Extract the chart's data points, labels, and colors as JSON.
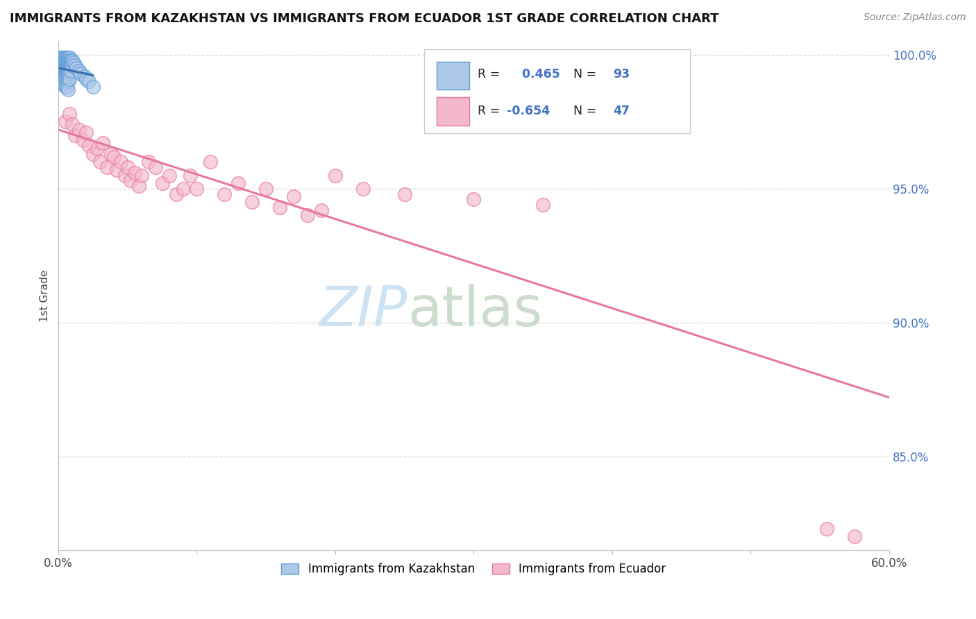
{
  "title": "IMMIGRANTS FROM KAZAKHSTAN VS IMMIGRANTS FROM ECUADOR 1ST GRADE CORRELATION CHART",
  "source": "Source: ZipAtlas.com",
  "ylabel": "1st Grade",
  "xlim": [
    0.0,
    0.6
  ],
  "ylim": [
    0.815,
    1.005
  ],
  "xticks": [
    0.0,
    0.1,
    0.2,
    0.3,
    0.4,
    0.5,
    0.6
  ],
  "xticklabels": [
    "0.0%",
    "",
    "",
    "",
    "",
    "",
    "60.0%"
  ],
  "yticks": [
    0.85,
    0.9,
    0.95,
    1.0
  ],
  "yticklabels": [
    "85.0%",
    "90.0%",
    "95.0%",
    "100.0%"
  ],
  "legend_label1": "Immigrants from Kazakhstan",
  "legend_label2": "Immigrants from Ecuador",
  "R1": 0.465,
  "N1": 93,
  "R2": -0.654,
  "N2": 47,
  "color_blue": "#aec8e8",
  "color_pink": "#f4b8cc",
  "color_blue_border": "#5b9bd5",
  "color_pink_border": "#e8789a",
  "color_blue_line": "#3a6fb0",
  "color_pink_line": "#e8789a",
  "background_color": "#ffffff",
  "grid_color": "#d8d8d8",
  "kazakhstan_x": [
    0.001,
    0.001,
    0.001,
    0.001,
    0.001,
    0.001,
    0.001,
    0.001,
    0.001,
    0.001,
    0.002,
    0.002,
    0.002,
    0.002,
    0.002,
    0.002,
    0.002,
    0.002,
    0.002,
    0.002,
    0.003,
    0.003,
    0.003,
    0.003,
    0.003,
    0.003,
    0.003,
    0.003,
    0.003,
    0.003,
    0.004,
    0.004,
    0.004,
    0.004,
    0.004,
    0.004,
    0.004,
    0.004,
    0.004,
    0.004,
    0.005,
    0.005,
    0.005,
    0.005,
    0.005,
    0.005,
    0.005,
    0.005,
    0.005,
    0.005,
    0.006,
    0.006,
    0.006,
    0.006,
    0.006,
    0.006,
    0.006,
    0.006,
    0.006,
    0.006,
    0.007,
    0.007,
    0.007,
    0.007,
    0.007,
    0.007,
    0.007,
    0.007,
    0.007,
    0.007,
    0.008,
    0.008,
    0.008,
    0.008,
    0.008,
    0.008,
    0.008,
    0.008,
    0.009,
    0.009,
    0.009,
    0.009,
    0.01,
    0.01,
    0.011,
    0.012,
    0.013,
    0.015,
    0.016,
    0.019,
    0.02,
    0.022,
    0.025
  ],
  "kazakhstan_y": [
    0.998,
    0.999,
    0.997,
    0.996,
    0.995,
    0.994,
    0.993,
    0.992,
    0.991,
    0.99,
    0.999,
    0.998,
    0.997,
    0.996,
    0.995,
    0.994,
    0.993,
    0.992,
    0.991,
    0.99,
    0.999,
    0.998,
    0.997,
    0.996,
    0.995,
    0.994,
    0.993,
    0.992,
    0.991,
    0.989,
    0.999,
    0.998,
    0.997,
    0.996,
    0.995,
    0.994,
    0.993,
    0.992,
    0.991,
    0.989,
    0.999,
    0.998,
    0.997,
    0.996,
    0.995,
    0.994,
    0.993,
    0.992,
    0.991,
    0.988,
    0.999,
    0.998,
    0.997,
    0.996,
    0.995,
    0.994,
    0.993,
    0.992,
    0.991,
    0.988,
    0.999,
    0.998,
    0.997,
    0.996,
    0.995,
    0.994,
    0.993,
    0.992,
    0.99,
    0.987,
    0.999,
    0.998,
    0.997,
    0.996,
    0.995,
    0.994,
    0.993,
    0.991,
    0.998,
    0.997,
    0.996,
    0.994,
    0.998,
    0.996,
    0.997,
    0.996,
    0.995,
    0.994,
    0.993,
    0.992,
    0.991,
    0.99,
    0.988
  ],
  "ecuador_x": [
    0.005,
    0.008,
    0.01,
    0.012,
    0.015,
    0.018,
    0.02,
    0.022,
    0.025,
    0.028,
    0.03,
    0.032,
    0.035,
    0.038,
    0.04,
    0.042,
    0.045,
    0.048,
    0.05,
    0.052,
    0.055,
    0.058,
    0.06,
    0.065,
    0.07,
    0.075,
    0.08,
    0.085,
    0.09,
    0.095,
    0.1,
    0.11,
    0.12,
    0.13,
    0.14,
    0.15,
    0.16,
    0.17,
    0.18,
    0.19,
    0.2,
    0.22,
    0.25,
    0.3,
    0.35,
    0.555,
    0.575
  ],
  "ecuador_y": [
    0.975,
    0.978,
    0.974,
    0.97,
    0.972,
    0.968,
    0.971,
    0.966,
    0.963,
    0.965,
    0.96,
    0.967,
    0.958,
    0.963,
    0.962,
    0.957,
    0.96,
    0.955,
    0.958,
    0.953,
    0.956,
    0.951,
    0.955,
    0.96,
    0.958,
    0.952,
    0.955,
    0.948,
    0.95,
    0.955,
    0.95,
    0.96,
    0.948,
    0.952,
    0.945,
    0.95,
    0.943,
    0.947,
    0.94,
    0.942,
    0.955,
    0.95,
    0.948,
    0.946,
    0.944,
    0.823,
    0.82
  ],
  "ecu_trend_x": [
    0.0,
    0.6
  ],
  "ecu_trend_y": [
    0.972,
    0.872
  ]
}
